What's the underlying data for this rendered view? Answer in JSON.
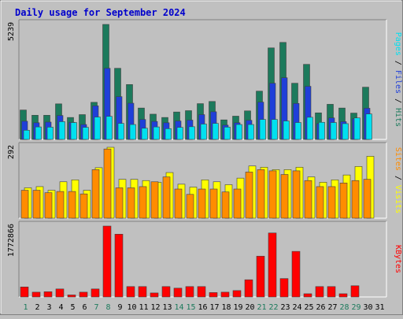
{
  "chart_data": {
    "type": "bar",
    "title": "Daily usage for September 2024",
    "categories": [
      "1",
      "2",
      "3",
      "4",
      "5",
      "6",
      "7",
      "8",
      "9",
      "10",
      "11",
      "12",
      "13",
      "14",
      "15",
      "16",
      "17",
      "18",
      "19",
      "20",
      "21",
      "22",
      "23",
      "24",
      "25",
      "26",
      "27",
      "28",
      "29",
      "30",
      "31"
    ],
    "weekend_days": [
      "1",
      "7",
      "8",
      "14",
      "15",
      "21",
      "22",
      "28",
      "29"
    ],
    "panels": [
      {
        "id": "hits-files-pages",
        "max_label": "5239",
        "max": 5239,
        "axis_labels": [
          "Pages",
          "Files",
          "Hits"
        ],
        "series": [
          {
            "name": "Hits",
            "color": "#1c7a5c",
            "values": [
              1340,
              1100,
              1100,
              1620,
              1000,
              1130,
              1690,
              5239,
              3240,
              2500,
              1430,
              1150,
              1000,
              1250,
              1310,
              1630,
              1730,
              890,
              1060,
              1300,
              2200,
              4170,
              4420,
              2560,
              3420,
              1210,
              1600,
              1430,
              1200,
              2380,
              null
            ]
          },
          {
            "name": "Files",
            "color": "#1f3fd9",
            "values": [
              830,
              760,
              790,
              1090,
              780,
              680,
              1530,
              3240,
              1950,
              1650,
              910,
              820,
              760,
              840,
              880,
              1130,
              1260,
              650,
              760,
              870,
              1700,
              2560,
              2810,
              1640,
              2420,
              720,
              980,
              810,
              940,
              1420,
              null
            ]
          },
          {
            "name": "Pages",
            "color": "#00e0f0",
            "values": [
              420,
              570,
              560,
              810,
              770,
              550,
              1020,
              1050,
              730,
              680,
              510,
              570,
              490,
              550,
              580,
              700,
              730,
              560,
              680,
              680,
              910,
              910,
              840,
              770,
              1010,
              780,
              770,
              720,
              980,
              1160,
              null
            ]
          }
        ]
      },
      {
        "id": "visits-sites",
        "max_label": "292",
        "max": 292,
        "axis_labels": [
          "Sites",
          "Visits"
        ],
        "series": [
          {
            "name": "Visits",
            "color": "#ffff00",
            "values": [
              125,
              130,
              115,
              150,
              158,
              115,
              208,
              292,
              160,
              160,
              155,
              148,
              188,
              140,
              128,
              158,
              150,
              138,
              165,
              215,
              210,
              200,
              200,
              210,
              170,
              148,
              158,
              178,
              213,
              255,
              null
            ]
          },
          {
            "name": "Sites",
            "color": "#ff8c00",
            "values": [
              115,
              115,
              105,
              110,
              110,
              100,
              200,
              285,
              125,
              125,
              130,
              150,
              170,
              120,
              98,
              120,
              120,
              108,
              120,
              190,
              200,
              195,
              180,
              195,
              155,
              130,
              130,
              145,
              155,
              160,
              null
            ]
          }
        ]
      },
      {
        "id": "kbytes",
        "max_label": "1772866",
        "max": 1772866,
        "axis_labels": [
          "KBytes"
        ],
        "series": [
          {
            "name": "KBytes",
            "color": "#ff0000",
            "values": [
              250000,
              120000,
              130000,
              200000,
              50000,
              120000,
              200000,
              1772866,
              1570000,
              260000,
              260000,
              100000,
              260000,
              220000,
              260000,
              260000,
              110000,
              120000,
              160000,
              430000,
              1020000,
              1600000,
              460000,
              1140000,
              80000,
              260000,
              260000,
              80000,
              280000,
              null,
              null
            ]
          }
        ]
      }
    ]
  }
}
